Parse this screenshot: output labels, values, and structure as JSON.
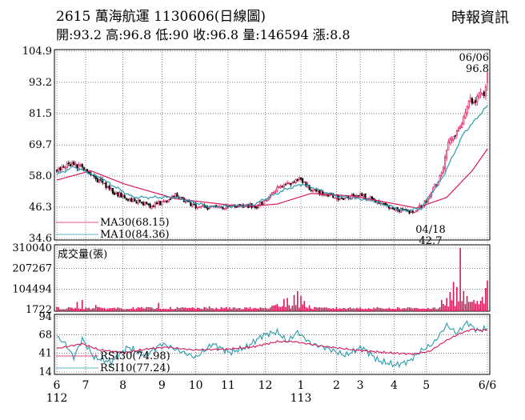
{
  "header": {
    "code": "2615",
    "name": "萬海航運",
    "date_label": "1130606(日線圖)",
    "source": "時報資訊",
    "ohlc": [
      {
        "label": "開",
        "value": "93.2"
      },
      {
        "label": "高",
        "value": "96.8"
      },
      {
        "label": "低",
        "value": "90"
      },
      {
        "label": "收",
        "value": "96.8"
      },
      {
        "label": "量",
        "value": "146594"
      },
      {
        "label": "漲",
        "value": "8.8"
      }
    ]
  },
  "colors": {
    "up": "#d6195b",
    "down": "#000000",
    "ma30": "#d6195b",
    "ma10": "#2a9bb0",
    "rsi30": "#d6195b",
    "rsi10": "#2a9bb0",
    "volume": "#d6195b",
    "grid": "#333333"
  },
  "chart_data": [
    {
      "type": "candlestick",
      "title": "2615 萬海航運 1130606(日線圖)",
      "y_ticks": [
        "104.9",
        "93.2",
        "81.5",
        "69.7",
        "58.0",
        "46.3",
        "34.6"
      ],
      "ylim": [
        34.6,
        104.9
      ],
      "grid": true,
      "annotations": [
        {
          "date_label": "06/06",
          "value_label": "96.8",
          "position": "top-right"
        },
        {
          "date_label": "04/18",
          "value_label": "42.7",
          "position": "bottom"
        }
      ],
      "legend": [
        {
          "name": "MA30(68.15)",
          "color": "#d6195b"
        },
        {
          "name": "MA10(84.36)",
          "color": "#2a9bb0"
        }
      ],
      "close_anchors": [
        [
          0,
          60.0
        ],
        [
          8,
          62.5
        ],
        [
          15,
          61.5
        ],
        [
          25,
          56.0
        ],
        [
          35,
          51.5
        ],
        [
          45,
          49.0
        ],
        [
          55,
          47.0
        ],
        [
          65,
          48.5
        ],
        [
          70,
          51.0
        ],
        [
          80,
          47.0
        ],
        [
          90,
          46.0
        ],
        [
          100,
          46.5
        ],
        [
          110,
          47.0
        ],
        [
          118,
          46.5
        ],
        [
          125,
          50.0
        ],
        [
          130,
          53.0
        ],
        [
          136,
          55.0
        ],
        [
          142,
          57.0
        ],
        [
          147,
          54.5
        ],
        [
          152,
          52.5
        ],
        [
          160,
          51.0
        ],
        [
          168,
          49.5
        ],
        [
          178,
          51.0
        ],
        [
          185,
          49.5
        ],
        [
          192,
          47.0
        ],
        [
          200,
          45.5
        ],
        [
          208,
          44.5
        ],
        [
          212,
          45.0
        ],
        [
          218,
          49.0
        ],
        [
          224,
          55.0
        ],
        [
          228,
          62.0
        ],
        [
          232,
          73.0
        ],
        [
          236,
          74.0
        ],
        [
          240,
          79.0
        ],
        [
          244,
          87.0
        ],
        [
          247,
          85.0
        ],
        [
          250,
          91.0
        ],
        [
          252,
          88.0
        ],
        [
          254,
          96.8
        ]
      ],
      "ma30_anchors": [
        [
          0,
          56.5
        ],
        [
          20,
          60.0
        ],
        [
          40,
          55.0
        ],
        [
          70,
          49.5
        ],
        [
          110,
          46.5
        ],
        [
          130,
          47.5
        ],
        [
          150,
          51.5
        ],
        [
          175,
          50.5
        ],
        [
          200,
          47.5
        ],
        [
          212,
          46.0
        ],
        [
          230,
          50.0
        ],
        [
          245,
          60.0
        ],
        [
          254,
          68.15
        ]
      ],
      "ma10_anchors": [
        [
          0,
          58.5
        ],
        [
          10,
          61.5
        ],
        [
          25,
          57.5
        ],
        [
          45,
          50.0
        ],
        [
          70,
          50.0
        ],
        [
          90,
          46.5
        ],
        [
          115,
          47.0
        ],
        [
          135,
          53.0
        ],
        [
          145,
          55.0
        ],
        [
          165,
          50.5
        ],
        [
          185,
          49.0
        ],
        [
          205,
          45.0
        ],
        [
          215,
          46.0
        ],
        [
          228,
          58.0
        ],
        [
          240,
          74.0
        ],
        [
          254,
          84.36
        ]
      ],
      "total_bars": 255
    },
    {
      "type": "bar",
      "title": "成交量(張)",
      "y_ticks": [
        "310040",
        "207267",
        "104494",
        "1722"
      ],
      "ylim": [
        1722,
        310040
      ],
      "spikes": [
        [
          12,
          40000
        ],
        [
          15,
          50000
        ],
        [
          23,
          25000
        ],
        [
          60,
          35000
        ],
        [
          90,
          18000
        ],
        [
          128,
          22000
        ],
        [
          130,
          30000
        ],
        [
          134,
          55000
        ],
        [
          136,
          60000
        ],
        [
          140,
          75000
        ],
        [
          142,
          95000
        ],
        [
          144,
          70000
        ],
        [
          146,
          45000
        ],
        [
          228,
          30000
        ],
        [
          230,
          60000
        ],
        [
          232,
          90000
        ],
        [
          234,
          140000
        ],
        [
          236,
          115000
        ],
        [
          238,
          310040
        ],
        [
          240,
          95000
        ],
        [
          242,
          70000
        ],
        [
          244,
          40000
        ],
        [
          248,
          45000
        ],
        [
          251,
          65000
        ],
        [
          253,
          110000
        ],
        [
          254,
          146594
        ]
      ]
    },
    {
      "type": "line",
      "title": "RSI",
      "y_ticks": [
        "94",
        "68",
        "41",
        "14"
      ],
      "ylim": [
        14,
        94
      ],
      "legend": [
        {
          "name": "RSI30(74.98)",
          "color": "#d6195b"
        },
        {
          "name": "RSI10(77.24)",
          "color": "#2a9bb0"
        }
      ],
      "rsi30_anchors": [
        [
          0,
          48
        ],
        [
          15,
          55
        ],
        [
          25,
          46
        ],
        [
          40,
          42
        ],
        [
          55,
          48
        ],
        [
          65,
          50
        ],
        [
          80,
          46
        ],
        [
          100,
          47
        ],
        [
          115,
          50
        ],
        [
          130,
          58
        ],
        [
          140,
          58
        ],
        [
          155,
          52
        ],
        [
          175,
          46
        ],
        [
          195,
          42
        ],
        [
          210,
          40
        ],
        [
          220,
          44
        ],
        [
          230,
          60
        ],
        [
          238,
          70
        ],
        [
          245,
          76
        ],
        [
          250,
          74
        ],
        [
          254,
          74.98
        ]
      ],
      "rsi10_anchors": [
        [
          0,
          65
        ],
        [
          5,
          55
        ],
        [
          10,
          35
        ],
        [
          15,
          62
        ],
        [
          22,
          35
        ],
        [
          32,
          28
        ],
        [
          42,
          50
        ],
        [
          52,
          38
        ],
        [
          62,
          55
        ],
        [
          72,
          45
        ],
        [
          82,
          35
        ],
        [
          92,
          55
        ],
        [
          102,
          42
        ],
        [
          112,
          50
        ],
        [
          122,
          68
        ],
        [
          130,
          72
        ],
        [
          136,
          58
        ],
        [
          142,
          72
        ],
        [
          150,
          55
        ],
        [
          160,
          48
        ],
        [
          170,
          38
        ],
        [
          180,
          50
        ],
        [
          190,
          30
        ],
        [
          200,
          24
        ],
        [
          208,
          30
        ],
        [
          215,
          45
        ],
        [
          222,
          55
        ],
        [
          230,
          82
        ],
        [
          236,
          70
        ],
        [
          242,
          86
        ],
        [
          248,
          74
        ],
        [
          254,
          77.24
        ]
      ]
    }
  ],
  "x_axis": {
    "months": [
      {
        "label": "6",
        "bar": 0
      },
      {
        "label": "7",
        "bar": 17
      },
      {
        "label": "8",
        "bar": 39
      },
      {
        "label": "9",
        "bar": 62
      },
      {
        "label": "10",
        "bar": 82
      },
      {
        "label": "11",
        "bar": 101
      },
      {
        "label": "12",
        "bar": 123
      },
      {
        "label": "1",
        "bar": 144
      },
      {
        "label": "2",
        "bar": 165
      },
      {
        "label": "3",
        "bar": 179
      },
      {
        "label": "4",
        "bar": 199
      },
      {
        "label": "5",
        "bar": 218
      },
      {
        "label": "6/6",
        "bar": 254
      }
    ],
    "years": [
      {
        "label": "112",
        "bar": 0
      },
      {
        "label": "113",
        "bar": 144
      }
    ]
  }
}
